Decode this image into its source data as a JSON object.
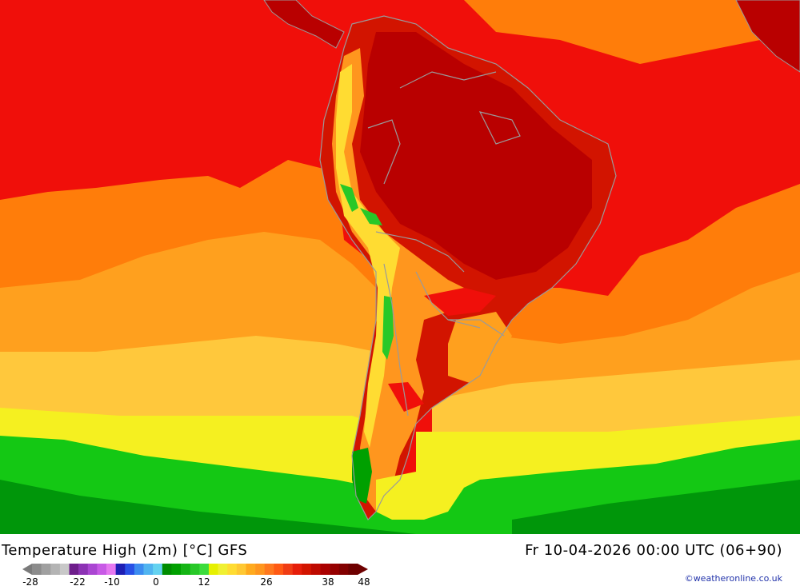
{
  "title": "Temperature High (2m) [°C] GFS",
  "datetime": "Fr 10-04-2026 00:00 UTC (06+90)",
  "credit": "©weatheronline.co.uk",
  "legend": {
    "tick_labels": [
      "-28",
      "-22",
      "-10",
      "0",
      "12",
      "26",
      "38",
      "48"
    ],
    "colors": [
      "#8c8c8c",
      "#a0a0a0",
      "#b4b4b4",
      "#c8c8c8",
      "#6e1e8c",
      "#8c32b4",
      "#aa46d2",
      "#c85ae6",
      "#e678f0",
      "#1e1eb4",
      "#2850e6",
      "#3c8cf0",
      "#50b4f0",
      "#64d2f0",
      "#008c00",
      "#00a000",
      "#14b414",
      "#28c828",
      "#3cdc3c",
      "#e6f000",
      "#f0f032",
      "#ffdc32",
      "#ffc832",
      "#ffaa1e",
      "#ff961e",
      "#ff781e",
      "#ff5a14",
      "#f03c14",
      "#e61e0a",
      "#d21400",
      "#be0a00",
      "#aa0000",
      "#960000",
      "#820000",
      "#6e0000"
    ]
  },
  "colors": {
    "ocean_red": "#f00f0a",
    "deep_red": "#b90000",
    "orange": "#ff7d0a",
    "light_orange": "#ffa01e",
    "yellow_orange": "#ffc83c",
    "yellow": "#f5f020",
    "green": "#14c814",
    "dark_green": "#00960a",
    "boundary": "#9a9a9a"
  }
}
